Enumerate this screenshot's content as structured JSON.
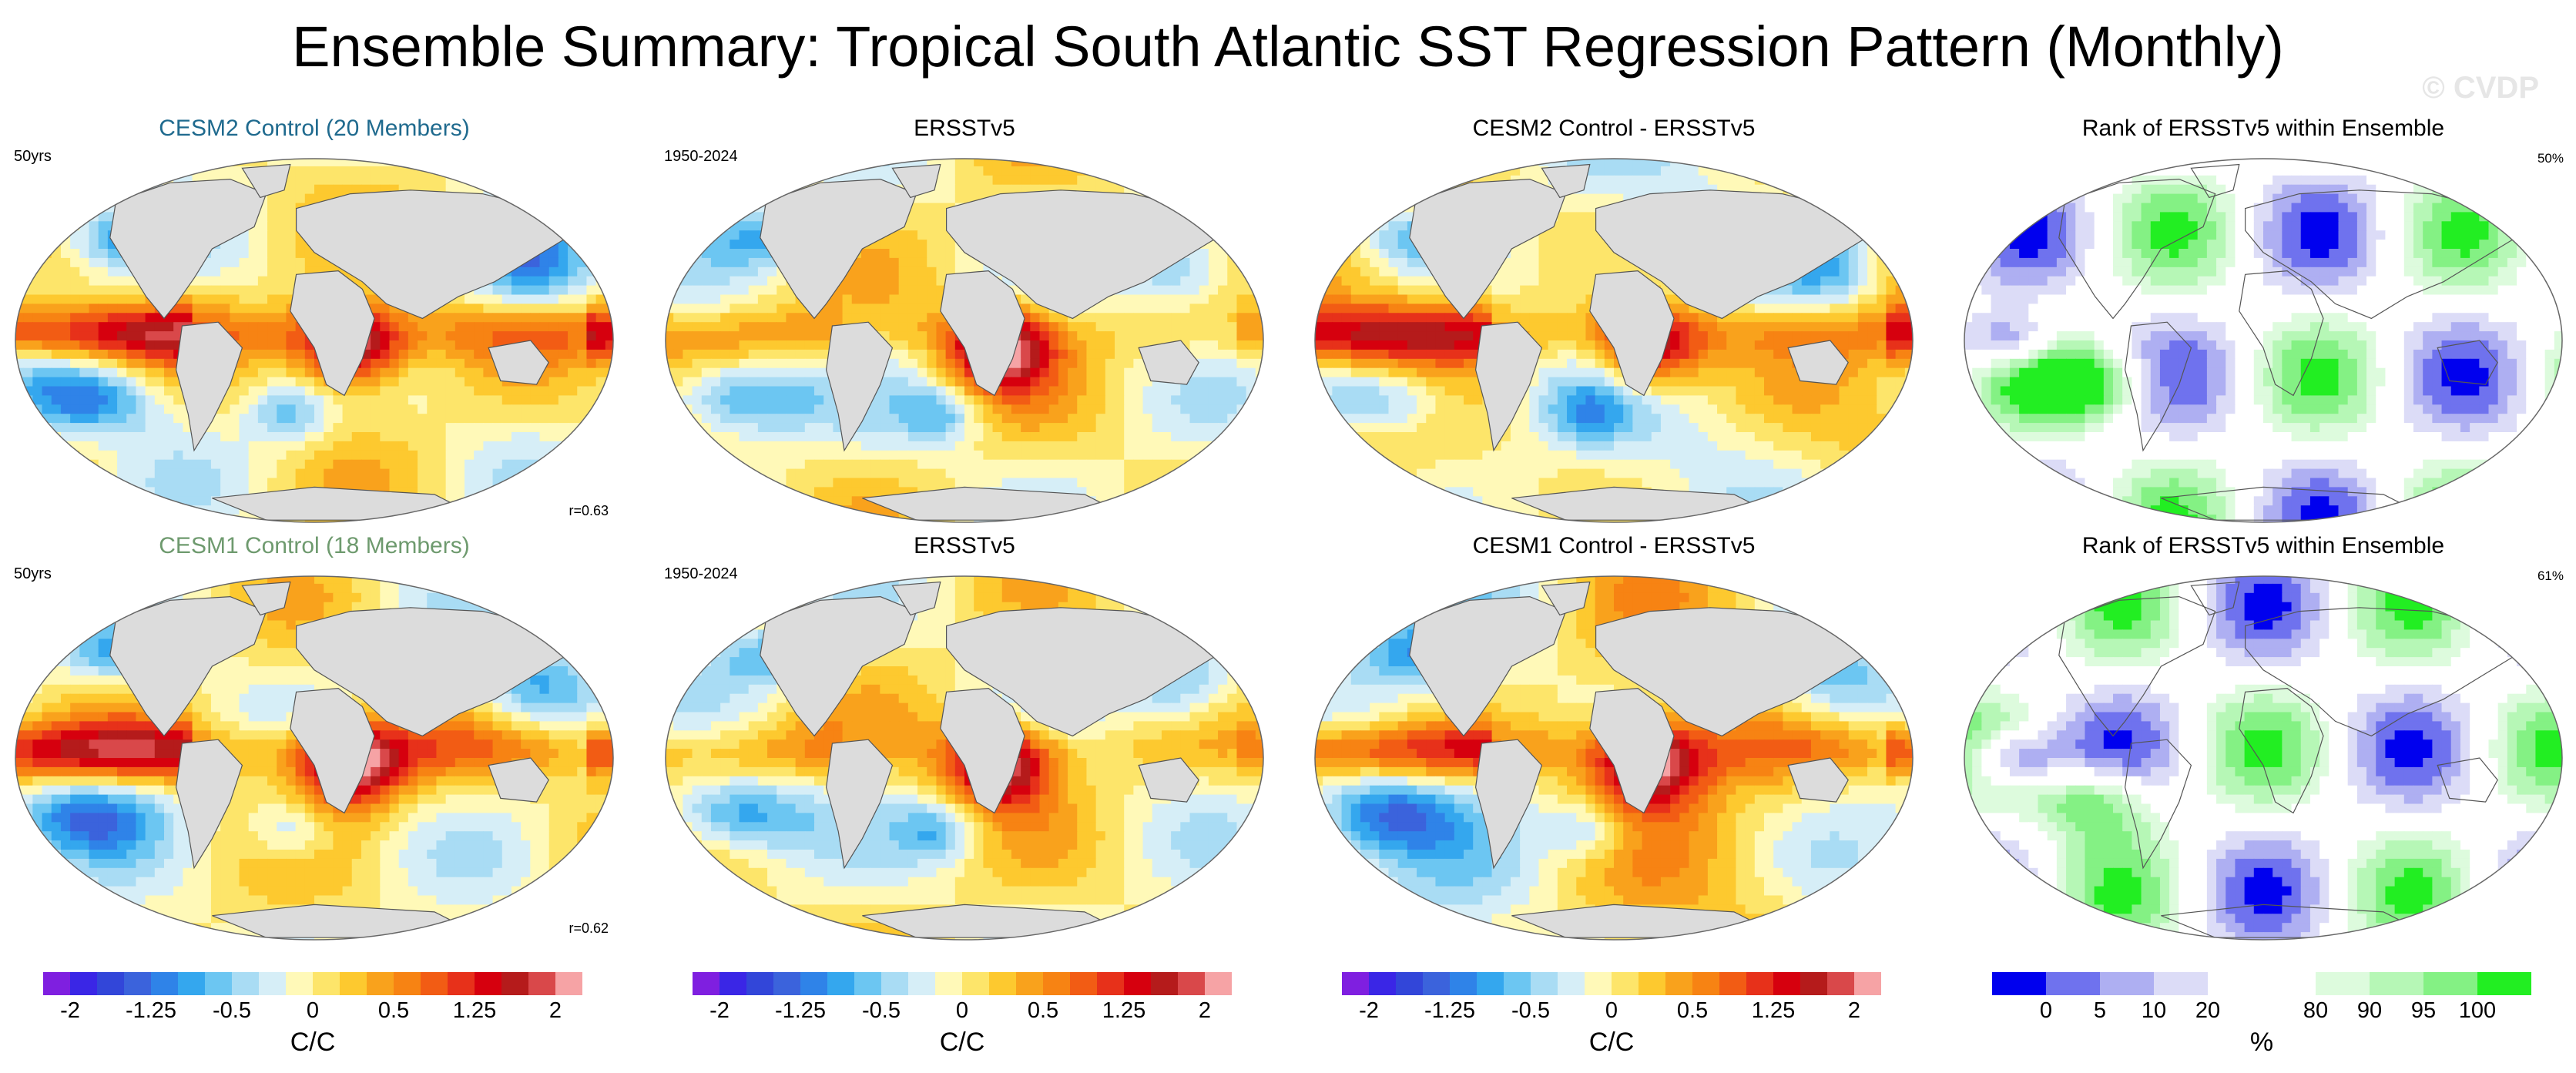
{
  "title": "Ensemble Summary: Tropical South Atlantic SST Regression Pattern (Monthly)",
  "watermark": "© CVDP",
  "panels": [
    {
      "title": "CESM2 Control (20 Members)",
      "left_note": "50yrs",
      "right_note": "",
      "corr": "r=0.63",
      "style": "cesm2",
      "kind": "model",
      "seed": 11
    },
    {
      "title": "ERSSTv5",
      "left_note": "1950-2024",
      "right_note": "",
      "corr": "",
      "style": "",
      "kind": "obs",
      "seed": 23
    },
    {
      "title": "CESM2 Control - ERSSTv5",
      "left_note": "",
      "right_note": "",
      "corr": "",
      "style": "",
      "kind": "diff",
      "seed": 37
    },
    {
      "title": "Rank of ERSSTv5 within Ensemble",
      "left_note": "",
      "right_note": "50%",
      "corr": "",
      "style": "",
      "kind": "rank",
      "seed": 41
    },
    {
      "title": "CESM1 Control (18 Members)",
      "left_note": "50yrs",
      "right_note": "",
      "corr": "r=0.62",
      "style": "cesm1",
      "kind": "model",
      "seed": 53
    },
    {
      "title": "ERSSTv5",
      "left_note": "1950-2024",
      "right_note": "",
      "corr": "",
      "style": "",
      "kind": "obs",
      "seed": 67
    },
    {
      "title": "CESM1 Control - ERSSTv5",
      "left_note": "",
      "right_note": "",
      "corr": "",
      "style": "",
      "kind": "diff",
      "seed": 71
    },
    {
      "title": "Rank of ERSSTv5 within Ensemble",
      "left_note": "",
      "right_note": "61%",
      "corr": "",
      "style": "",
      "kind": "rank",
      "seed": 83
    }
  ],
  "colorbars": {
    "sst": {
      "colors": [
        "#7f1fe0",
        "#3a26e6",
        "#3246d9",
        "#3b63dc",
        "#2f83e8",
        "#34a7ee",
        "#6cc6f2",
        "#a9dcf4",
        "#d6eef7",
        "#fff9b8",
        "#fde56a",
        "#fdc92f",
        "#f9a21c",
        "#f78313",
        "#f25c14",
        "#e7311a",
        "#d6000e",
        "#b51b1b",
        "#d9484a",
        "#f6a3a5"
      ],
      "ticks": [
        "-2",
        "-1.25",
        "-0.5",
        "0",
        "0.5",
        "1.25",
        "2"
      ],
      "unit": "C/C"
    },
    "rank": {
      "colors": [
        "#0000ee",
        "#6f72ee",
        "#aeaff2",
        "#dcdcf7",
        "#ffffff",
        "#ffffff",
        "#ddfbdd",
        "#b6f7b6",
        "#84f184",
        "#22ee22"
      ],
      "ticks": [
        "0",
        "5",
        "10",
        "20",
        "80",
        "90",
        "95",
        "100"
      ],
      "unit": "%"
    }
  }
}
